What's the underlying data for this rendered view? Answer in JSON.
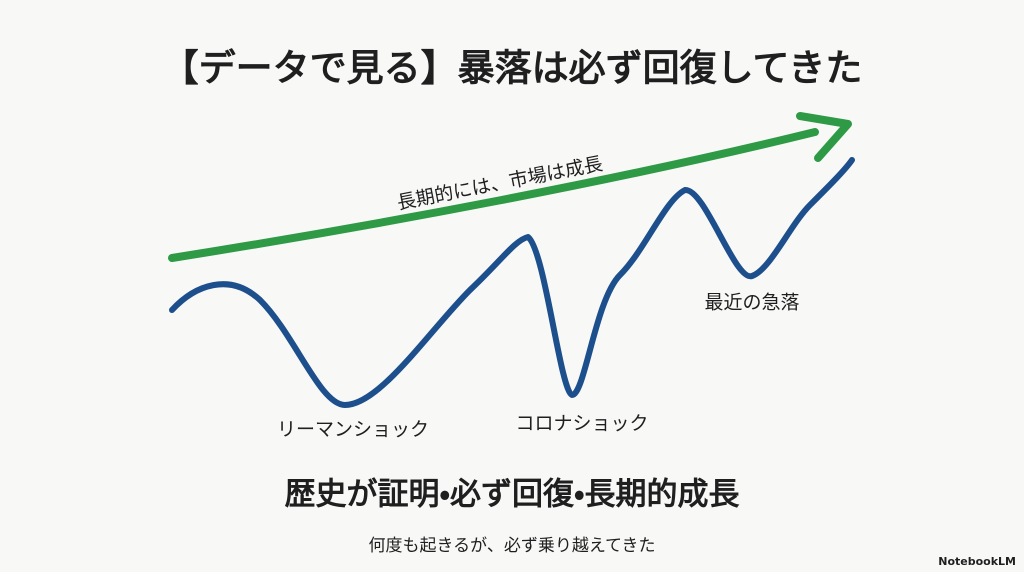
{
  "header": {
    "title": "【データで見る】暴落は必ず回復してきた"
  },
  "diagram": {
    "trend_label": "長期的には、市場は成長",
    "events": [
      {
        "label": "リーマンショック"
      },
      {
        "label": "コロナショック"
      },
      {
        "label": "最近の急落"
      }
    ]
  },
  "footer": {
    "headline": "歴史が証明・必ず回復・長期的成長",
    "caption": "何度も起きるが、必ず乗り越えてきた",
    "watermark": "NotebookLM"
  }
}
